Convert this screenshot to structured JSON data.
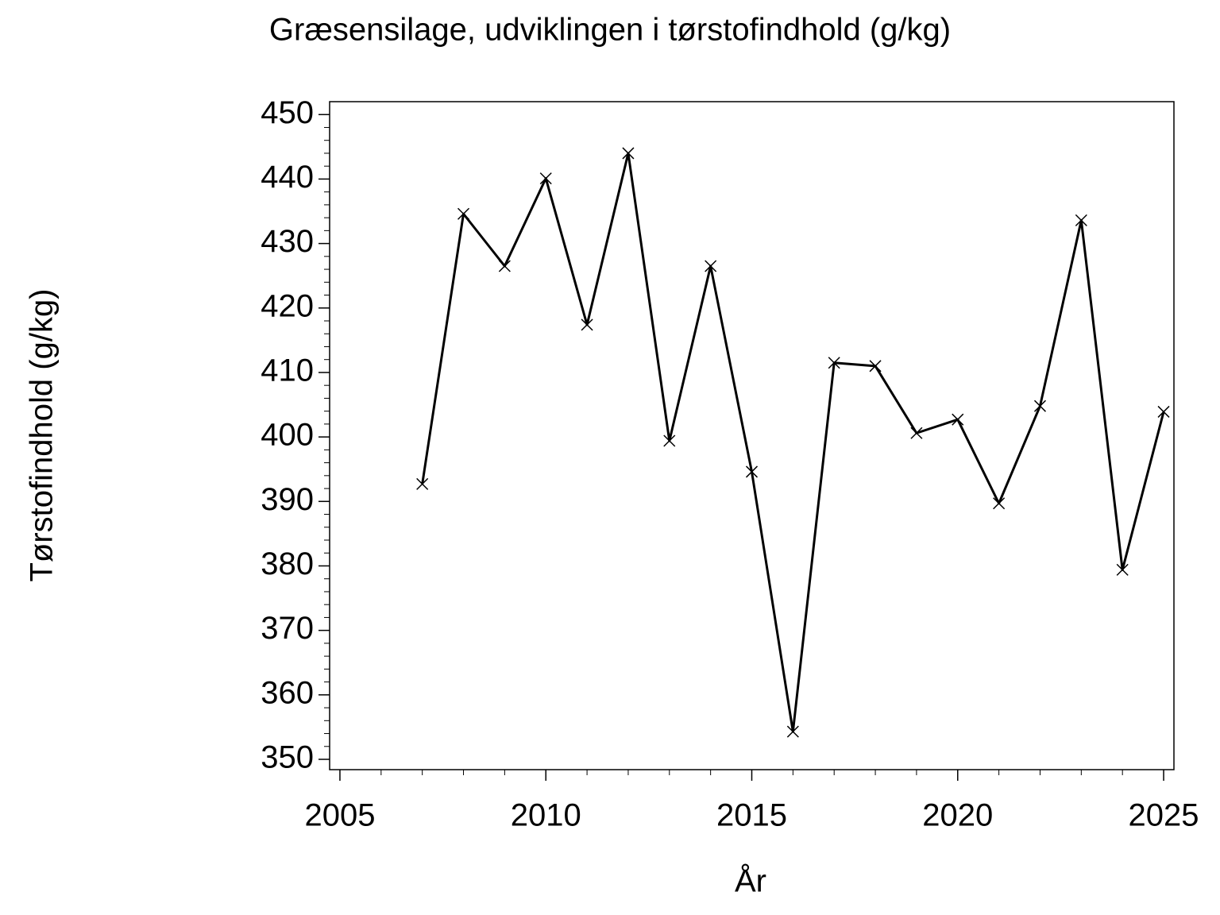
{
  "chart_data": {
    "type": "line",
    "title": "Græsensilage,  udviklingen  i  tørstofindhold  (g/kg)",
    "x_label": "År",
    "y_label": "Tørstofindhold  (g/kg)",
    "x": [
      2007,
      2008,
      2009,
      2010,
      2011,
      2012,
      2013,
      2014,
      2015,
      2016,
      2017,
      2018,
      2019,
      2020,
      2021,
      2022,
      2023,
      2024,
      2025
    ],
    "series": [
      {
        "color": "#000000",
        "marker": "x",
        "values": [
          392.7,
          434.6,
          426.5,
          440.1,
          417.4,
          444.0,
          399.4,
          426.5,
          394.6,
          354.3,
          411.5,
          411.0,
          400.6,
          402.7,
          389.7,
          404.8,
          433.6,
          379.4,
          403.9
        ]
      }
    ],
    "xlim": [
      2004.75,
      2025.25
    ],
    "xticks": [
      2005,
      2010,
      2015,
      2020,
      2025
    ],
    "ylim": [
      348.4,
      452
    ],
    "yticks": [
      350,
      360,
      370,
      380,
      390,
      400,
      410,
      420,
      430,
      440,
      450
    ],
    "grid": false
  }
}
